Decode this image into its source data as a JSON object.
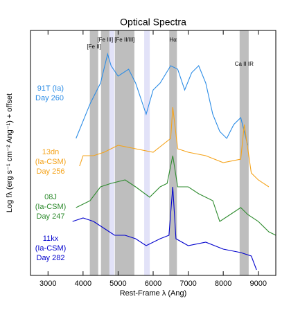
{
  "chart_data": {
    "type": "line",
    "title": "Optical Spectra",
    "x_label": "Rest-Frame λ (Ang)",
    "y_label": "Log fλ (erg s⁻¹ cm⁻² Ang⁻¹) + offset",
    "xlim": [
      2500,
      9500
    ],
    "xticks": [
      3000,
      4000,
      5000,
      6000,
      7000,
      8000,
      9000
    ],
    "ylim": [
      0,
      354
    ],
    "shaded_regions": [
      {
        "label": "[Fe II]",
        "range": [
          4193,
          4432
        ]
      },
      {
        "label": "[Fe III]",
        "range": [
          4511,
          4750
        ]
      },
      {
        "label": "[Fe II/III]",
        "range": [
          4908,
          5465
        ]
      },
      {
        "label": "Hα",
        "range": [
          6459,
          6678
        ]
      },
      {
        "label": "Ca II IR",
        "range": [
          8467,
          8726
        ]
      }
    ],
    "shade_color": "#bebebe",
    "light_regions": [
      [
        4650,
        4890
      ],
      [
        5744,
        5903
      ]
    ],
    "light_color": "#e2e2f8",
    "series": [
      {
        "label_lines": [
          "91T (Ia)",
          "Day 260"
        ],
        "color": "#2b8ce6",
        "x": [
          3800,
          4200,
          4500,
          4700,
          4800,
          5000,
          5300,
          5500,
          5700,
          5800,
          6000,
          6200,
          6500,
          6700,
          6900,
          7100,
          7300,
          7500,
          7700,
          7900,
          8100,
          8300,
          8500,
          8700
        ],
        "values": [
          198,
          248,
          278,
          320,
          303,
          288,
          298,
          278,
          248,
          233,
          268,
          278,
          303,
          298,
          268,
          293,
          303,
          278,
          233,
          208,
          198,
          218,
          228,
          188
        ]
      },
      {
        "label_lines": [
          "13dn",
          "(Ia-CSM)",
          "Day 256"
        ],
        "color": "#f5a31a",
        "x": [
          3900,
          4000,
          4300,
          4600,
          4800,
          5000,
          5500,
          6000,
          6500,
          6560,
          6700,
          7000,
          7500,
          8000,
          8500,
          8600,
          8800,
          9000,
          9300
        ],
        "values": [
          158,
          173,
          173,
          178,
          183,
          188,
          183,
          178,
          198,
          243,
          183,
          178,
          173,
          163,
          168,
          218,
          148,
          138,
          128
        ]
      },
      {
        "label_lines": [
          "08J",
          "(Ia-CSM)",
          "Day 247"
        ],
        "color": "#2e8b2e",
        "x": [
          3800,
          4200,
          4500,
          4800,
          5200,
          5500,
          5900,
          6200,
          6400,
          6560,
          6700,
          7000,
          7300,
          7700,
          7900,
          8200,
          8500,
          8700,
          9000,
          9300,
          9500
        ],
        "values": [
          98,
          108,
          128,
          133,
          138,
          128,
          113,
          128,
          133,
          173,
          128,
          128,
          118,
          108,
          78,
          88,
          98,
          88,
          78,
          63,
          58
        ]
      },
      {
        "label_lines": [
          "11kx",
          "(Ia-CSM)",
          "Day 282"
        ],
        "color": "#0000cd",
        "x": [
          3700,
          4000,
          4300,
          4600,
          4900,
          5200,
          5500,
          5800,
          6200,
          6450,
          6560,
          6650,
          7000,
          7500,
          8000,
          8500,
          8800,
          8950
        ],
        "values": [
          78,
          83,
          78,
          68,
          58,
          58,
          53,
          43,
          53,
          58,
          128,
          53,
          43,
          48,
          38,
          33,
          28,
          8
        ]
      }
    ]
  }
}
